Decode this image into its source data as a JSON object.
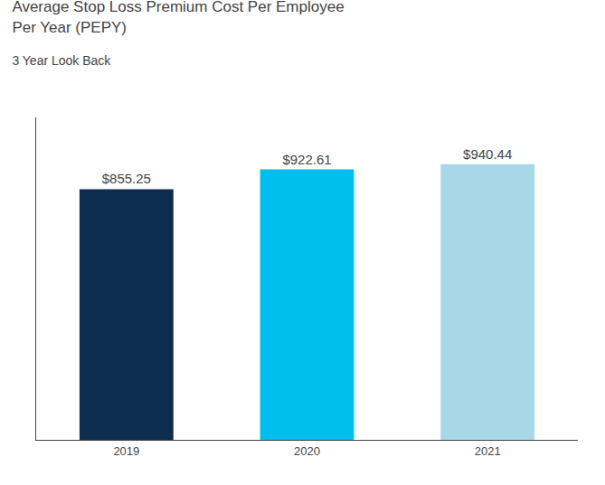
{
  "chart_data": {
    "type": "bar",
    "title": "Average Stop Loss Premium Cost Per Employee\nPer Year (PEPY)",
    "subtitle": "3 Year Look Back",
    "categories": [
      "2019",
      "2020",
      "2021"
    ],
    "values": [
      855.25,
      922.61,
      940.44
    ],
    "value_labels": [
      "$855.25",
      "$922.61",
      "$940.44"
    ],
    "colors": [
      "#0d2d4f",
      "#00bfef",
      "#a8d8e8"
    ],
    "ylim": [
      0,
      1100
    ],
    "grid": false,
    "data_labels": true,
    "tick_labels": "x"
  }
}
